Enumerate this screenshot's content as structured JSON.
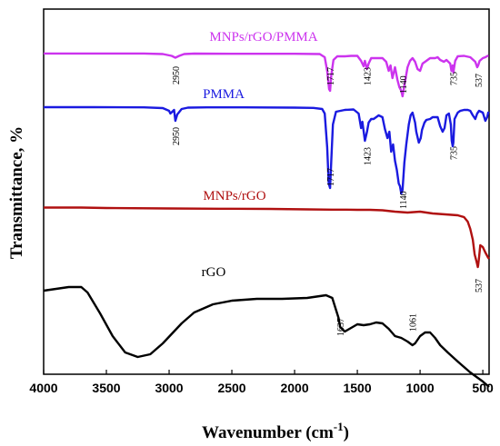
{
  "chart_data": {
    "type": "line",
    "xlabel_main": "Wavenumber (cm",
    "xlabel_sup": "-1",
    "xlabel_close": ")",
    "ylabel": "Transmittance, %",
    "xlim": [
      4000,
      450
    ],
    "x_reversed": true,
    "xticks": [
      4000,
      3500,
      3000,
      2500,
      2000,
      1500,
      1000,
      500
    ],
    "ytick_labels": false,
    "series": [
      {
        "name": "MNPs/rGO/PMMA",
        "color": "#cc33ee",
        "points": [
          [
            4000,
            0.9
          ],
          [
            3600,
            0.92
          ],
          [
            3200,
            0.92
          ],
          [
            3050,
            1.5
          ],
          [
            2980,
            3.5
          ],
          [
            2950,
            5.5
          ],
          [
            2920,
            3.5
          ],
          [
            2880,
            1.5
          ],
          [
            2800,
            1.0
          ],
          [
            2400,
            1.2
          ],
          [
            2000,
            1.2
          ],
          [
            1800,
            1.5
          ],
          [
            1760,
            5
          ],
          [
            1740,
            20
          ],
          [
            1725,
            40
          ],
          [
            1717,
            42
          ],
          [
            1708,
            25
          ],
          [
            1690,
            8
          ],
          [
            1660,
            4
          ],
          [
            1600,
            4
          ],
          [
            1550,
            3.5
          ],
          [
            1500,
            3.5
          ],
          [
            1470,
            9
          ],
          [
            1450,
            15
          ],
          [
            1440,
            9
          ],
          [
            1423,
            18
          ],
          [
            1410,
            12
          ],
          [
            1390,
            6
          ],
          [
            1350,
            6
          ],
          [
            1300,
            6
          ],
          [
            1270,
            10
          ],
          [
            1250,
            20
          ],
          [
            1235,
            14
          ],
          [
            1220,
            28
          ],
          [
            1200,
            16
          ],
          [
            1180,
            30
          ],
          [
            1165,
            38
          ],
          [
            1150,
            42
          ],
          [
            1140,
            48
          ],
          [
            1125,
            36
          ],
          [
            1100,
            16
          ],
          [
            1080,
            9
          ],
          [
            1060,
            6
          ],
          [
            1040,
            10
          ],
          [
            1020,
            18
          ],
          [
            1000,
            20
          ],
          [
            980,
            12
          ],
          [
            960,
            10
          ],
          [
            920,
            6
          ],
          [
            880,
            6
          ],
          [
            860,
            5
          ],
          [
            840,
            8
          ],
          [
            810,
            10
          ],
          [
            790,
            8
          ],
          [
            760,
            12
          ],
          [
            750,
            20
          ],
          [
            740,
            14
          ],
          [
            735,
            22
          ],
          [
            720,
            9
          ],
          [
            700,
            4
          ],
          [
            650,
            3.5
          ],
          [
            600,
            5
          ],
          [
            560,
            10
          ],
          [
            545,
            16
          ],
          [
            537,
            14
          ],
          [
            525,
            9
          ],
          [
            500,
            6
          ],
          [
            480,
            5
          ],
          [
            455,
            3
          ]
        ]
      },
      {
        "name": "PMMA",
        "color": "#1a1ae0",
        "points": [
          [
            4000,
            1.0
          ],
          [
            3600,
            1.0
          ],
          [
            3200,
            1.2
          ],
          [
            3050,
            2
          ],
          [
            3000,
            5
          ],
          [
            2990,
            8
          ],
          [
            2960,
            4
          ],
          [
            2950,
            16
          ],
          [
            2935,
            9
          ],
          [
            2900,
            3
          ],
          [
            2850,
            1.5
          ],
          [
            2700,
            1.2
          ],
          [
            2400,
            1.2
          ],
          [
            2000,
            1.5
          ],
          [
            1850,
            1.8
          ],
          [
            1780,
            3
          ],
          [
            1760,
            8
          ],
          [
            1740,
            45
          ],
          [
            1728,
            85
          ],
          [
            1717,
            90
          ],
          [
            1708,
            60
          ],
          [
            1695,
            20
          ],
          [
            1670,
            6
          ],
          [
            1600,
            4
          ],
          [
            1530,
            3.5
          ],
          [
            1490,
            8
          ],
          [
            1470,
            24
          ],
          [
            1460,
            17
          ],
          [
            1440,
            38
          ],
          [
            1423,
            28
          ],
          [
            1410,
            18
          ],
          [
            1390,
            14
          ],
          [
            1370,
            14
          ],
          [
            1350,
            12
          ],
          [
            1330,
            10
          ],
          [
            1300,
            12
          ],
          [
            1280,
            25
          ],
          [
            1260,
            35
          ],
          [
            1245,
            28
          ],
          [
            1230,
            50
          ],
          [
            1215,
            42
          ],
          [
            1200,
            60
          ],
          [
            1185,
            70
          ],
          [
            1170,
            85
          ],
          [
            1160,
            88
          ],
          [
            1150,
            96
          ],
          [
            1140,
            92
          ],
          [
            1125,
            62
          ],
          [
            1110,
            42
          ],
          [
            1090,
            20
          ],
          [
            1075,
            10
          ],
          [
            1060,
            7
          ],
          [
            1040,
            18
          ],
          [
            1030,
            28
          ],
          [
            1010,
            40
          ],
          [
            995,
            35
          ],
          [
            985,
            26
          ],
          [
            965,
            18
          ],
          [
            950,
            15
          ],
          [
            920,
            14
          ],
          [
            900,
            12
          ],
          [
            880,
            12
          ],
          [
            860,
            12
          ],
          [
            840,
            22
          ],
          [
            820,
            28
          ],
          [
            805,
            24
          ],
          [
            790,
            10
          ],
          [
            770,
            8
          ],
          [
            755,
            20
          ],
          [
            748,
            38
          ],
          [
            740,
            44
          ],
          [
            735,
            40
          ],
          [
            725,
            14
          ],
          [
            700,
            7
          ],
          [
            680,
            5
          ],
          [
            650,
            4
          ],
          [
            620,
            4
          ],
          [
            600,
            5
          ],
          [
            580,
            10
          ],
          [
            560,
            14
          ],
          [
            545,
            8
          ],
          [
            530,
            5
          ],
          [
            500,
            7
          ],
          [
            480,
            16
          ],
          [
            465,
            12
          ],
          [
            455,
            6
          ]
        ]
      },
      {
        "name": "MNPs/rGO",
        "color": "#b01010",
        "points": [
          [
            4000,
            0.5
          ],
          [
            3700,
            0.5
          ],
          [
            3500,
            1
          ],
          [
            3000,
            1.5
          ],
          [
            2600,
            1.8
          ],
          [
            2200,
            2
          ],
          [
            1900,
            2.5
          ],
          [
            1700,
            2.8
          ],
          [
            1600,
            2.8
          ],
          [
            1500,
            3
          ],
          [
            1400,
            3
          ],
          [
            1300,
            3.5
          ],
          [
            1200,
            5
          ],
          [
            1100,
            6
          ],
          [
            1000,
            5
          ],
          [
            900,
            7
          ],
          [
            800,
            8
          ],
          [
            700,
            9
          ],
          [
            650,
            11
          ],
          [
            620,
            16
          ],
          [
            600,
            24
          ],
          [
            580,
            36
          ],
          [
            565,
            52
          ],
          [
            550,
            60
          ],
          [
            540,
            66
          ],
          [
            537,
            64
          ],
          [
            530,
            55
          ],
          [
            520,
            42
          ],
          [
            500,
            44
          ],
          [
            480,
            50
          ],
          [
            460,
            55
          ],
          [
            450,
            57
          ]
        ]
      },
      {
        "name": "rGO",
        "color": "#000000",
        "points": [
          [
            4000,
            20
          ],
          [
            3800,
            16
          ],
          [
            3700,
            16
          ],
          [
            3650,
            22
          ],
          [
            3550,
            45
          ],
          [
            3450,
            70
          ],
          [
            3350,
            88
          ],
          [
            3250,
            93
          ],
          [
            3150,
            90
          ],
          [
            3050,
            78
          ],
          [
            2900,
            56
          ],
          [
            2800,
            44
          ],
          [
            2650,
            35
          ],
          [
            2500,
            31
          ],
          [
            2300,
            29
          ],
          [
            2100,
            29
          ],
          [
            1900,
            28
          ],
          [
            1800,
            26
          ],
          [
            1750,
            25
          ],
          [
            1700,
            28
          ],
          [
            1650,
            50
          ],
          [
            1637,
            60
          ],
          [
            1600,
            65
          ],
          [
            1550,
            61
          ],
          [
            1500,
            57
          ],
          [
            1450,
            58
          ],
          [
            1400,
            57
          ],
          [
            1350,
            55
          ],
          [
            1300,
            56
          ],
          [
            1250,
            62
          ],
          [
            1200,
            70
          ],
          [
            1150,
            72
          ],
          [
            1100,
            76
          ],
          [
            1061,
            80
          ],
          [
            1040,
            78
          ],
          [
            1000,
            70
          ],
          [
            960,
            66
          ],
          [
            920,
            66
          ],
          [
            880,
            72
          ],
          [
            840,
            80
          ],
          [
            780,
            88
          ],
          [
            700,
            98
          ],
          [
            600,
            110
          ],
          [
            500,
            120
          ],
          [
            450,
            126
          ]
        ]
      }
    ],
    "labels": {
      "series_names": [
        "MNPs/rGO/PMMA",
        "PMMA",
        "MNPs/rGO",
        "rGO"
      ],
      "peaks": [
        {
          "series": 0,
          "text": "2950",
          "x": 2950
        },
        {
          "series": 0,
          "text": "1717",
          "x": 1717
        },
        {
          "series": 0,
          "text": "1423",
          "x": 1423
        },
        {
          "series": 0,
          "text": "1140",
          "x": 1140
        },
        {
          "series": 0,
          "text": "735",
          "x": 735
        },
        {
          "series": 0,
          "text": "537",
          "x": 537
        },
        {
          "series": 1,
          "text": "2950",
          "x": 2950
        },
        {
          "series": 1,
          "text": "1717",
          "x": 1717
        },
        {
          "series": 1,
          "text": "1423",
          "x": 1423
        },
        {
          "series": 1,
          "text": "1140",
          "x": 1140
        },
        {
          "series": 1,
          "text": "735",
          "x": 735
        },
        {
          "series": 2,
          "text": "537",
          "x": 537
        },
        {
          "series": 3,
          "text": "1637",
          "x": 1637
        },
        {
          "series": 3,
          "text": "1061",
          "x": 1061
        }
      ]
    },
    "grid": false,
    "legend": "inline labels above each trace"
  }
}
